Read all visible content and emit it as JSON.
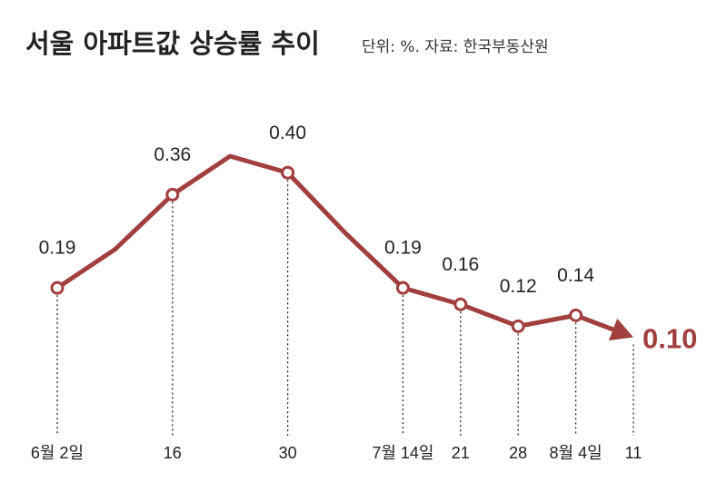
{
  "chart_data": {
    "type": "line",
    "title": "서울 아파트값 상승률 추이",
    "subtitle": "단위: %. 자료: 한국부동산원",
    "categories": [
      "6월 2일",
      null,
      "16",
      null,
      "30",
      null,
      "7월 14일",
      "21",
      "28",
      "8월 4일",
      "11"
    ],
    "values": [
      0.19,
      0.26,
      0.36,
      0.43,
      0.4,
      0.29,
      0.19,
      0.16,
      0.12,
      0.14,
      0.1
    ],
    "value_labels": [
      "0.19",
      null,
      "0.36",
      null,
      "0.40",
      null,
      "0.19",
      "0.16",
      "0.12",
      "0.14",
      "0.10"
    ],
    "color": "#a13f3e",
    "ylim": [
      0,
      0.45
    ]
  }
}
